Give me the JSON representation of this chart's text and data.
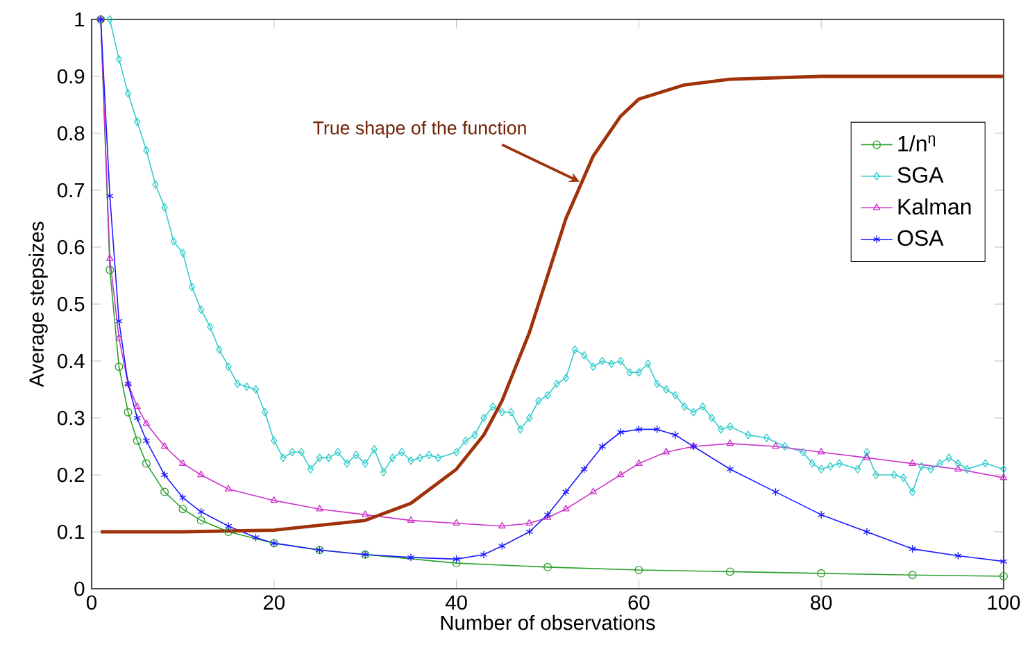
{
  "chart_data": {
    "type": "line",
    "xlabel": "Number of observations",
    "ylabel": "Average stepsizes",
    "xlim": [
      0,
      100
    ],
    "ylim": [
      0,
      1
    ],
    "xticks": [
      0,
      20,
      40,
      60,
      80,
      100
    ],
    "yticks": [
      0,
      0.1,
      0.2,
      0.3,
      0.4,
      0.5,
      0.6,
      0.7,
      0.8,
      0.9,
      1
    ],
    "legend": "top right",
    "grid": false,
    "annotations": [
      "True shape of the function"
    ],
    "series": [
      {
        "name": "1/n$^{η}$",
        "color": "#2ca02c",
        "marker": "circle",
        "x": [
          1,
          2,
          3,
          4,
          5,
          6,
          8,
          10,
          12,
          15,
          20,
          25,
          30,
          40,
          50,
          60,
          70,
          80,
          90,
          100
        ],
        "values": [
          1,
          0.56,
          0.39,
          0.31,
          0.26,
          0.22,
          0.17,
          0.14,
          0.12,
          0.1,
          0.08,
          0.068,
          0.06,
          0.045,
          0.038,
          0.033,
          0.03,
          0.027,
          0.024,
          0.022
        ]
      },
      {
        "name": "SGA",
        "color": "#33cccc",
        "marker": "diamond",
        "x": [
          2,
          3,
          4,
          5,
          6,
          7,
          8,
          9,
          10,
          11,
          12,
          13,
          14,
          15,
          16,
          17,
          18,
          19,
          20,
          21,
          22,
          23,
          24,
          25,
          26,
          27,
          28,
          29,
          30,
          31,
          32,
          33,
          34,
          35,
          36,
          37,
          38,
          40,
          41,
          42,
          43,
          44,
          45,
          46,
          47,
          48,
          49,
          50,
          51,
          52,
          53,
          54,
          55,
          56,
          57,
          58,
          59,
          60,
          61,
          62,
          63,
          64,
          65,
          66,
          67,
          68,
          69,
          70,
          72,
          74,
          76,
          78,
          79,
          80,
          81,
          82,
          84,
          85,
          86,
          88,
          89,
          90,
          91,
          92,
          93,
          94,
          95,
          96,
          98,
          100
        ],
        "values": [
          1,
          0.93,
          0.87,
          0.82,
          0.77,
          0.71,
          0.67,
          0.61,
          0.59,
          0.53,
          0.49,
          0.46,
          0.42,
          0.39,
          0.36,
          0.355,
          0.35,
          0.31,
          0.26,
          0.23,
          0.24,
          0.24,
          0.21,
          0.23,
          0.23,
          0.24,
          0.22,
          0.235,
          0.22,
          0.245,
          0.205,
          0.23,
          0.24,
          0.225,
          0.23,
          0.235,
          0.23,
          0.24,
          0.26,
          0.27,
          0.3,
          0.32,
          0.31,
          0.31,
          0.28,
          0.3,
          0.33,
          0.34,
          0.36,
          0.37,
          0.42,
          0.41,
          0.39,
          0.4,
          0.395,
          0.4,
          0.38,
          0.38,
          0.395,
          0.36,
          0.35,
          0.34,
          0.32,
          0.31,
          0.32,
          0.3,
          0.28,
          0.285,
          0.27,
          0.265,
          0.25,
          0.24,
          0.22,
          0.21,
          0.215,
          0.22,
          0.21,
          0.24,
          0.2,
          0.2,
          0.195,
          0.17,
          0.215,
          0.21,
          0.22,
          0.23,
          0.22,
          0.21,
          0.22,
          0.21
        ]
      },
      {
        "name": "Kalman",
        "color": "#cc33cc",
        "marker": "triangle",
        "x": [
          1,
          2,
          3,
          4,
          5,
          6,
          8,
          10,
          12,
          15,
          20,
          25,
          30,
          35,
          40,
          45,
          48,
          50,
          52,
          55,
          58,
          60,
          63,
          66,
          70,
          75,
          80,
          85,
          90,
          95,
          100
        ],
        "values": [
          1,
          0.58,
          0.44,
          0.36,
          0.32,
          0.29,
          0.25,
          0.22,
          0.2,
          0.175,
          0.155,
          0.14,
          0.13,
          0.12,
          0.115,
          0.11,
          0.115,
          0.125,
          0.14,
          0.17,
          0.2,
          0.22,
          0.24,
          0.25,
          0.255,
          0.25,
          0.24,
          0.23,
          0.22,
          0.21,
          0.195
        ]
      },
      {
        "name": "OSA",
        "color": "#1a1aff",
        "marker": "cross",
        "x": [
          1,
          2,
          3,
          4,
          5,
          6,
          8,
          10,
          12,
          15,
          18,
          20,
          25,
          30,
          35,
          40,
          43,
          45,
          48,
          50,
          52,
          54,
          56,
          58,
          60,
          62,
          64,
          66,
          70,
          75,
          80,
          85,
          90,
          95,
          100
        ],
        "values": [
          1,
          0.69,
          0.47,
          0.36,
          0.3,
          0.26,
          0.2,
          0.16,
          0.135,
          0.11,
          0.09,
          0.08,
          0.068,
          0.06,
          0.055,
          0.052,
          0.06,
          0.075,
          0.1,
          0.13,
          0.17,
          0.21,
          0.25,
          0.275,
          0.28,
          0.28,
          0.27,
          0.25,
          0.21,
          0.17,
          0.13,
          0.1,
          0.07,
          0.058,
          0.048
        ]
      },
      {
        "color": "#a0320a",
        "marker": "none",
        "x": [
          1,
          10,
          20,
          30,
          35,
          40,
          43,
          45,
          48,
          50,
          52,
          55,
          58,
          60,
          65,
          70,
          80,
          100
        ],
        "values": [
          0.1,
          0.1,
          0.103,
          0.12,
          0.15,
          0.21,
          0.27,
          0.33,
          0.45,
          0.55,
          0.65,
          0.76,
          0.83,
          0.86,
          0.885,
          0.895,
          0.9,
          0.9
        ]
      }
    ]
  }
}
